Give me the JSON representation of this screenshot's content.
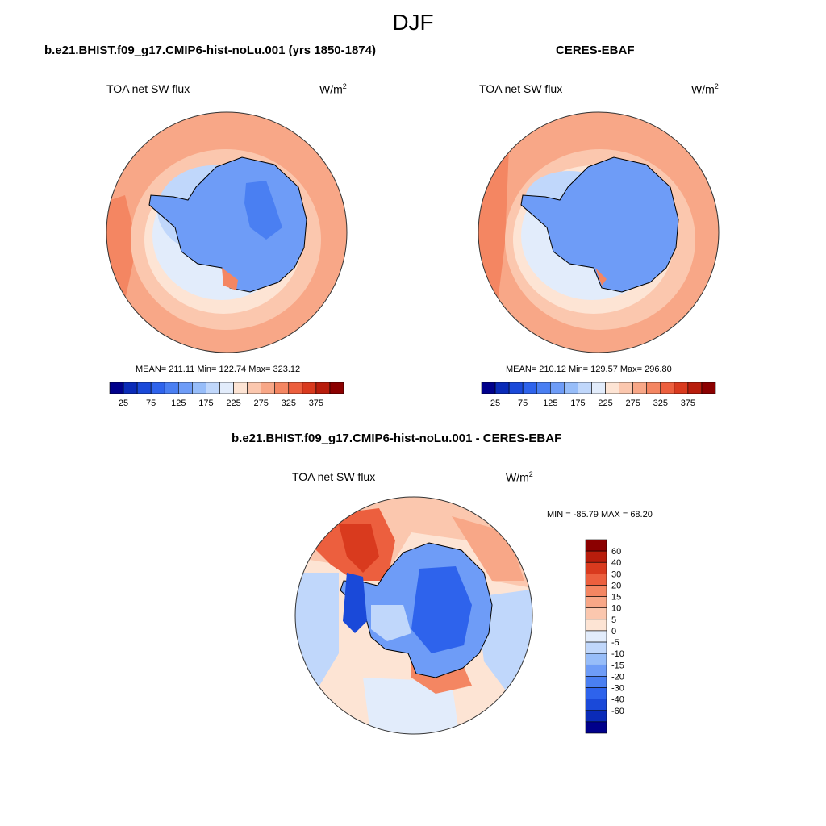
{
  "figure_title": "DJF",
  "palette": [
    "#00008b",
    "#0a2bb8",
    "#1a49d9",
    "#2e63ec",
    "#4a7ff2",
    "#6e9cf7",
    "#97bdf9",
    "#c0d7fb",
    "#e2ecfb",
    "#fde4d4",
    "#fbc7ae",
    "#f8a787",
    "#f48662",
    "#ec5f3e",
    "#d93a1e",
    "#b81d0c",
    "#8b0000"
  ],
  "diff_palette": [
    "#00008b",
    "#0a2bb8",
    "#1a49d9",
    "#2e63ec",
    "#4a7ff2",
    "#6e9cf7",
    "#97bdf9",
    "#c0d7fb",
    "#e2ecfb",
    "#fde4d4",
    "#fbc7ae",
    "#f8a787",
    "#f48662",
    "#ec5f3e",
    "#d93a1e",
    "#b81d0c",
    "#8b0000"
  ],
  "panels": [
    {
      "title": "b.e21.BHIST.f09_g17.CMIP6-hist-noLu.001 (yrs 1850-1874)",
      "variable": "TOA net SW flux",
      "units": "W/m",
      "units_sup": "2",
      "stats": "MEAN= 211.11  Min= 122.74  Max= 323.12",
      "mean": 211.11,
      "min": 122.74,
      "max": 323.12,
      "colorbar_ticks": [
        "25",
        "75",
        "125",
        "175",
        "225",
        "275",
        "325",
        "375"
      ]
    },
    {
      "title": "CERES-EBAF",
      "variable": "TOA net SW flux",
      "units": "W/m",
      "units_sup": "2",
      "stats": "MEAN= 210.12  Min= 129.57  Max= 296.80",
      "mean": 210.12,
      "min": 129.57,
      "max": 296.8,
      "colorbar_ticks": [
        "25",
        "75",
        "125",
        "175",
        "225",
        "275",
        "325",
        "375"
      ]
    }
  ],
  "difference": {
    "title": "b.e21.BHIST.f09_g17.CMIP6-hist-noLu.001 - CERES-EBAF",
    "variable": "TOA net SW flux",
    "units": "W/m",
    "units_sup": "2",
    "stats": "MIN = -85.79 MAX =  68.20",
    "min": -85.79,
    "max": 68.2,
    "colorbar_ticks": [
      "60",
      "40",
      "30",
      "20",
      "15",
      "10",
      "5",
      "0",
      "-5",
      "-10",
      "-15",
      "-20",
      "-30",
      "-40",
      "-60"
    ]
  }
}
